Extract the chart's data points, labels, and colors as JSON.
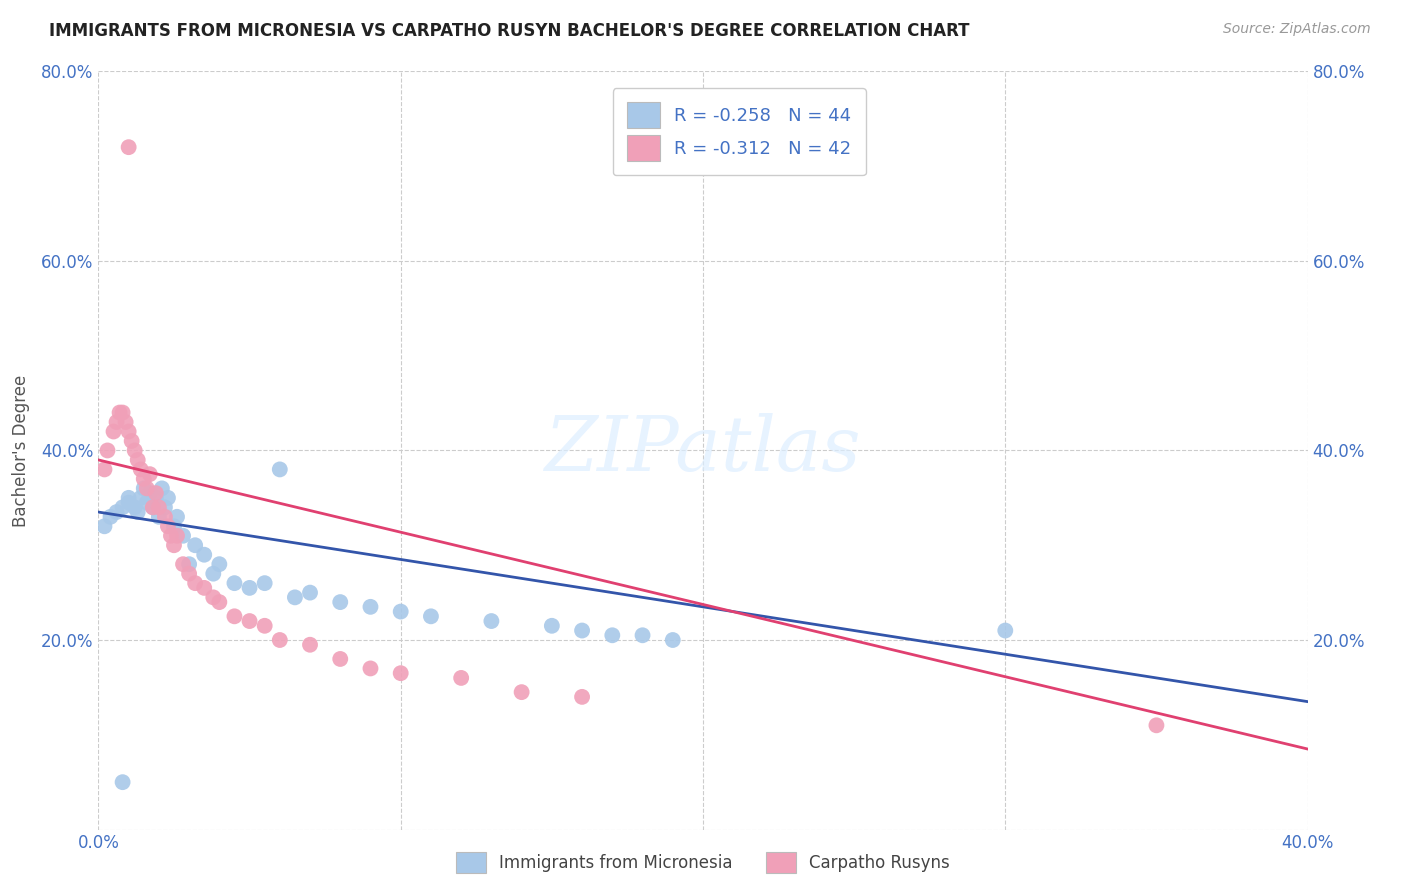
{
  "title": "IMMIGRANTS FROM MICRONESIA VS CARPATHO RUSYN BACHELOR'S DEGREE CORRELATION CHART",
  "source_text": "Source: ZipAtlas.com",
  "ylabel": "Bachelor's Degree",
  "legend_blue_r": "R = -0.258",
  "legend_blue_n": "N = 44",
  "legend_pink_r": "R = -0.312",
  "legend_pink_n": "N = 42",
  "legend_blue_label": "Immigrants from Micronesia",
  "legend_pink_label": "Carpatho Rusyns",
  "xlim": [
    0.0,
    0.4
  ],
  "ylim": [
    0.0,
    0.8
  ],
  "blue_color": "#A8C8E8",
  "pink_color": "#F0A0B8",
  "blue_line_color": "#3355AA",
  "pink_line_color": "#E04070",
  "grid_color": "#CCCCCC",
  "background_color": "#FFFFFF",
  "blue_scatter_x": [
    0.002,
    0.004,
    0.006,
    0.008,
    0.01,
    0.01,
    0.012,
    0.013,
    0.014,
    0.015,
    0.016,
    0.017,
    0.018,
    0.019,
    0.02,
    0.021,
    0.022,
    0.023,
    0.025,
    0.026,
    0.028,
    0.03,
    0.032,
    0.035,
    0.038,
    0.04,
    0.045,
    0.05,
    0.055,
    0.06,
    0.065,
    0.07,
    0.08,
    0.09,
    0.1,
    0.11,
    0.13,
    0.15,
    0.16,
    0.17,
    0.18,
    0.19,
    0.3,
    0.008
  ],
  "blue_scatter_y": [
    0.32,
    0.33,
    0.335,
    0.34,
    0.345,
    0.35,
    0.34,
    0.335,
    0.35,
    0.36,
    0.345,
    0.355,
    0.34,
    0.35,
    0.33,
    0.36,
    0.34,
    0.35,
    0.32,
    0.33,
    0.31,
    0.28,
    0.3,
    0.29,
    0.27,
    0.28,
    0.26,
    0.255,
    0.26,
    0.38,
    0.245,
    0.25,
    0.24,
    0.235,
    0.23,
    0.225,
    0.22,
    0.215,
    0.21,
    0.205,
    0.205,
    0.2,
    0.21,
    0.05
  ],
  "pink_scatter_x": [
    0.002,
    0.003,
    0.005,
    0.006,
    0.007,
    0.008,
    0.009,
    0.01,
    0.011,
    0.012,
    0.013,
    0.014,
    0.015,
    0.016,
    0.017,
    0.018,
    0.019,
    0.02,
    0.022,
    0.023,
    0.024,
    0.025,
    0.026,
    0.028,
    0.03,
    0.032,
    0.035,
    0.038,
    0.04,
    0.045,
    0.05,
    0.055,
    0.06,
    0.07,
    0.08,
    0.09,
    0.1,
    0.12,
    0.14,
    0.16,
    0.35,
    0.01
  ],
  "pink_scatter_y": [
    0.38,
    0.4,
    0.42,
    0.43,
    0.44,
    0.44,
    0.43,
    0.42,
    0.41,
    0.4,
    0.39,
    0.38,
    0.37,
    0.36,
    0.375,
    0.34,
    0.355,
    0.34,
    0.33,
    0.32,
    0.31,
    0.3,
    0.31,
    0.28,
    0.27,
    0.26,
    0.255,
    0.245,
    0.24,
    0.225,
    0.22,
    0.215,
    0.2,
    0.195,
    0.18,
    0.17,
    0.165,
    0.16,
    0.145,
    0.14,
    0.11,
    0.72
  ],
  "blue_line_x0": 0.0,
  "blue_line_y0": 0.335,
  "blue_line_x1": 0.4,
  "blue_line_y1": 0.135,
  "pink_line_x0": 0.0,
  "pink_line_y0": 0.39,
  "pink_line_x1": 0.4,
  "pink_line_y1": 0.085
}
